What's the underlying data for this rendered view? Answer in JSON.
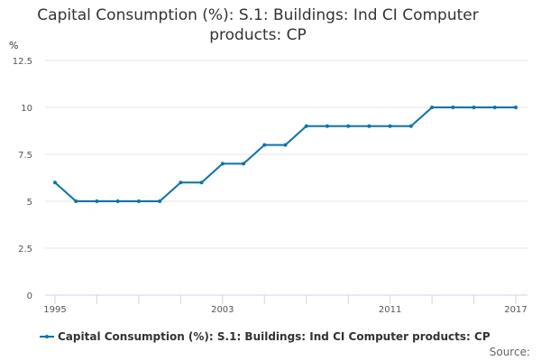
{
  "chart_data": {
    "type": "line",
    "title": "Capital Consumption (%): S.1: Buildings: Ind CI Computer products: CP",
    "ylabel": "%",
    "x": [
      1995,
      1996,
      1997,
      1998,
      1999,
      2000,
      2001,
      2002,
      2003,
      2004,
      2005,
      2006,
      2007,
      2008,
      2009,
      2010,
      2011,
      2012,
      2013,
      2014,
      2015,
      2016,
      2017
    ],
    "series": [
      {
        "name": "Capital Consumption (%): S.1: Buildings: Ind CI Computer products: CP",
        "values": [
          6,
          5,
          5,
          5,
          5,
          5,
          6,
          6,
          7,
          7,
          8,
          8,
          9,
          9,
          9,
          9,
          9,
          9,
          10,
          10,
          10,
          10,
          10
        ]
      }
    ],
    "ylim": [
      0,
      12.5
    ],
    "y_ticks": [
      "0",
      "2.5",
      "5",
      "7.5",
      "10",
      "12.5"
    ],
    "x_tick_labels": [
      "1995",
      "2003",
      "2011",
      "2017"
    ],
    "grid": true,
    "legend": "bottom",
    "color": "#0077bb"
  },
  "source_label": "Source:"
}
